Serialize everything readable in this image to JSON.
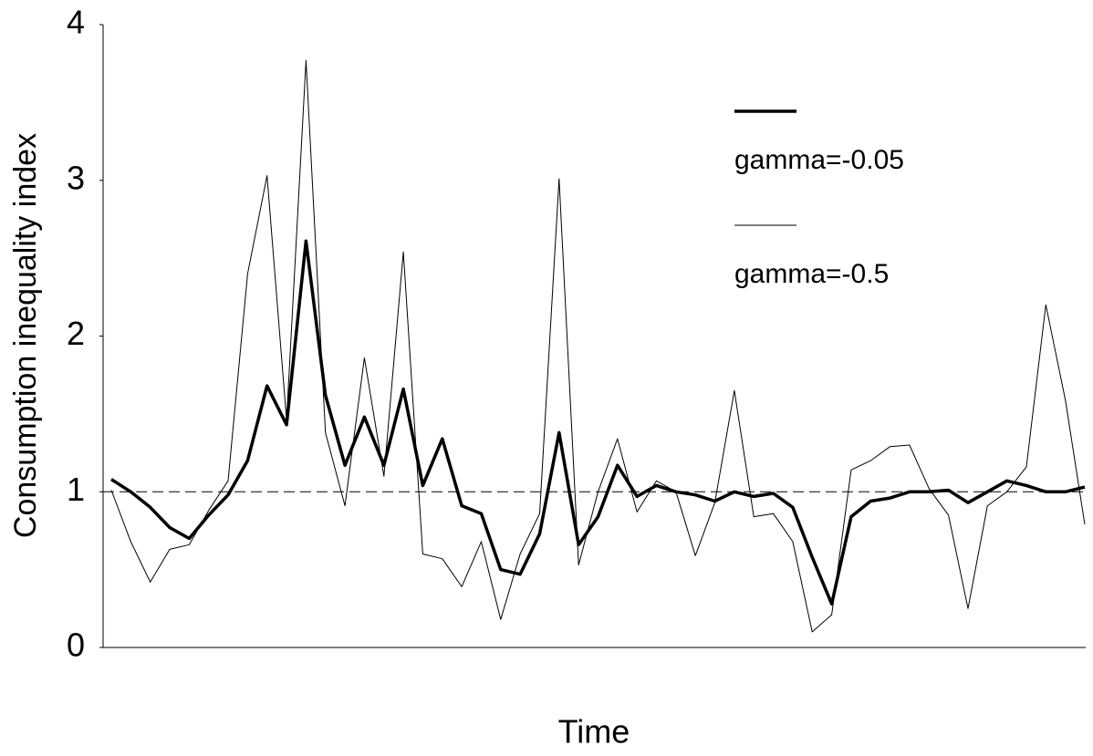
{
  "chart_data": {
    "type": "line",
    "xlabel": "Time",
    "ylabel": "Consumption inequality index",
    "categories": [
      null,
      null,
      null,
      null,
      null,
      null,
      null,
      null,
      null,
      null,
      null,
      null,
      null,
      null,
      null,
      null,
      null,
      null,
      null,
      null,
      null,
      null,
      null,
      null,
      null,
      null,
      null,
      null,
      null,
      null,
      null,
      null,
      null,
      null,
      null,
      null,
      null,
      null,
      null,
      null,
      null,
      null,
      null,
      null,
      null,
      null,
      null,
      null,
      null,
      null,
      null
    ],
    "series": [
      {
        "name": "gamma=-0.05",
        "color": "#000000",
        "width": 3.5,
        "values": [
          1.08,
          1.0,
          0.9,
          0.77,
          0.7,
          0.85,
          0.98,
          1.2,
          1.68,
          1.43,
          2.61,
          1.62,
          1.17,
          1.48,
          1.17,
          1.66,
          1.04,
          1.34,
          0.91,
          0.86,
          0.5,
          0.47,
          0.73,
          1.38,
          0.66,
          0.84,
          1.17,
          0.97,
          1.04,
          1.0,
          0.98,
          0.94,
          1.0,
          0.97,
          0.99,
          0.9,
          0.58,
          0.28,
          0.84,
          0.94,
          0.96,
          1.0,
          1.0,
          1.01,
          0.93,
          1.0,
          1.07,
          1.04,
          1.0,
          1.0,
          1.03
        ]
      },
      {
        "name": "gamma=-0.5",
        "color": "#000000",
        "width": 1,
        "values": [
          1.01,
          0.68,
          0.42,
          0.63,
          0.66,
          0.88,
          1.07,
          2.4,
          3.03,
          1.46,
          3.77,
          1.38,
          0.91,
          1.86,
          1.1,
          2.54,
          0.6,
          0.57,
          0.39,
          0.68,
          0.18,
          0.6,
          0.86,
          3.01,
          0.53,
          1.0,
          1.34,
          0.87,
          1.07,
          1.0,
          0.59,
          0.93,
          1.65,
          0.84,
          0.86,
          0.68,
          0.1,
          0.21,
          1.14,
          1.2,
          1.29,
          1.3,
          1.02,
          0.85,
          0.25,
          0.91,
          1.0,
          1.16,
          2.2,
          1.59,
          0.79
        ]
      }
    ],
    "reference_line": 1,
    "ylim": [
      0,
      4
    ],
    "yticks": [
      0,
      1,
      2,
      3,
      4
    ],
    "grid": false
  }
}
